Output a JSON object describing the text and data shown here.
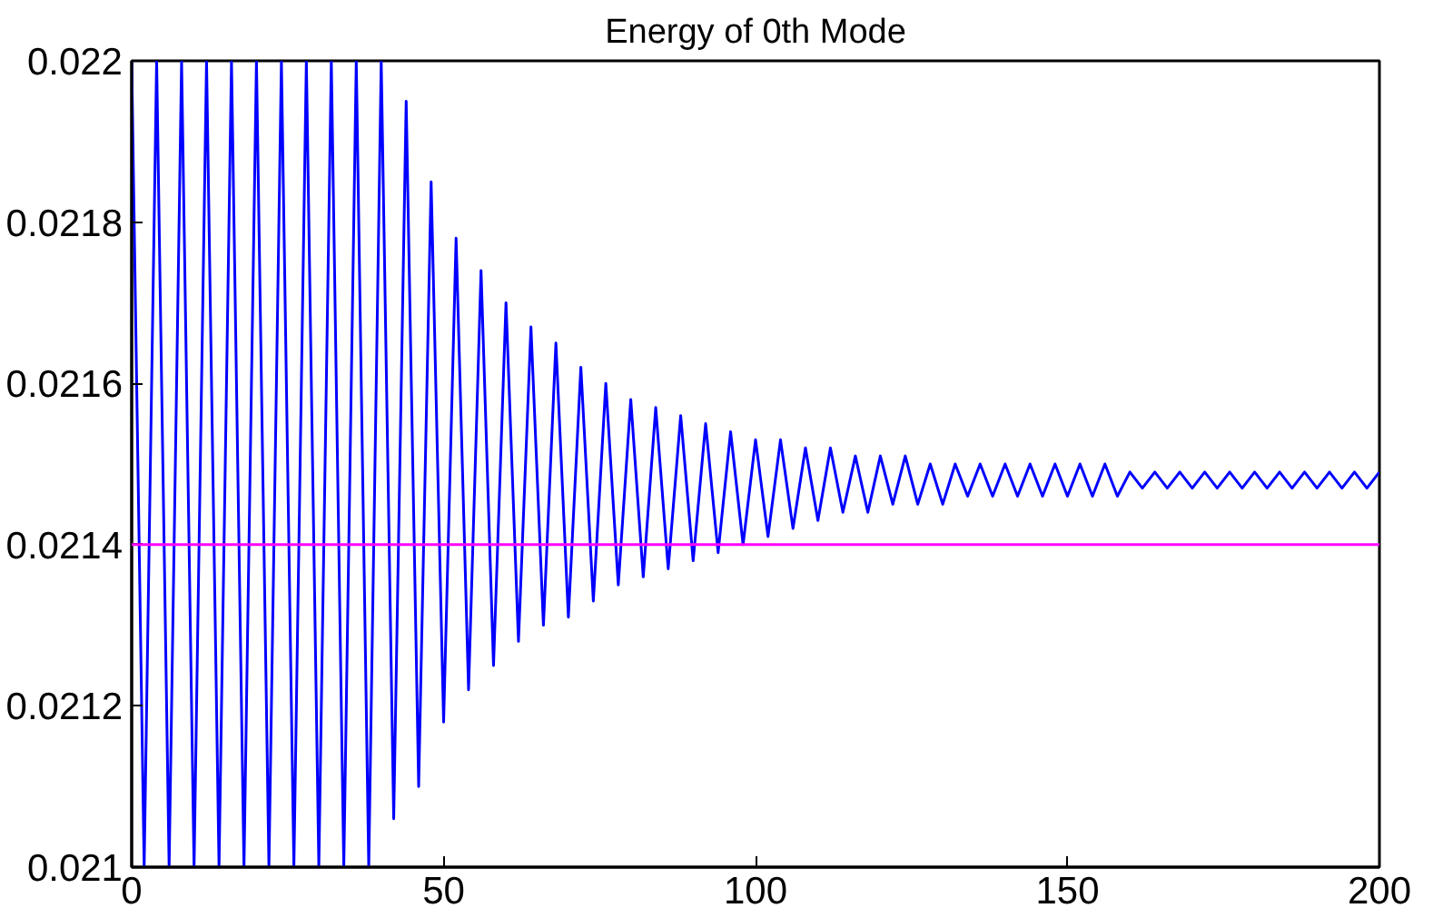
{
  "chart_data": {
    "type": "line",
    "title": "Energy of 0th Mode",
    "x": [
      0,
      2,
      4,
      6,
      8,
      10,
      12,
      14,
      16,
      18,
      20,
      22,
      24,
      26,
      28,
      30,
      32,
      34,
      36,
      38,
      40,
      42,
      44,
      46,
      48,
      50,
      52,
      54,
      56,
      58,
      60,
      62,
      64,
      66,
      68,
      70,
      72,
      74,
      76,
      78,
      80,
      82,
      84,
      86,
      88,
      90,
      92,
      94,
      96,
      98,
      100,
      102,
      104,
      106,
      108,
      110,
      112,
      114,
      116,
      118,
      120,
      122,
      124,
      126,
      128,
      130,
      132,
      134,
      136,
      138,
      140,
      142,
      144,
      146,
      148,
      150,
      152,
      154,
      156,
      158,
      160,
      162,
      164,
      166,
      168,
      170,
      172,
      174,
      176,
      178,
      180,
      182,
      184,
      186,
      188,
      190,
      192,
      194,
      196,
      198,
      200
    ],
    "series": [
      {
        "color": "#0000ff",
        "values": [
          0.022,
          0.021,
          0.022,
          0.021,
          0.022,
          0.021,
          0.022,
          0.021,
          0.022,
          0.021,
          0.022,
          0.021,
          0.022,
          0.021,
          0.022,
          0.021,
          0.022,
          0.021,
          0.022,
          0.021,
          0.022,
          0.02106,
          0.02195,
          0.0211,
          0.02185,
          0.02118,
          0.02178,
          0.02122,
          0.02174,
          0.02125,
          0.0217,
          0.02128,
          0.02167,
          0.0213,
          0.02165,
          0.02131,
          0.02162,
          0.02133,
          0.0216,
          0.02135,
          0.02158,
          0.02136,
          0.02157,
          0.02137,
          0.02156,
          0.02138,
          0.02155,
          0.02139,
          0.02154,
          0.0214,
          0.02153,
          0.02141,
          0.02153,
          0.02142,
          0.02152,
          0.02143,
          0.02152,
          0.02144,
          0.02151,
          0.02144,
          0.02151,
          0.02145,
          0.02151,
          0.02145,
          0.0215,
          0.02145,
          0.0215,
          0.02146,
          0.0215,
          0.02146,
          0.0215,
          0.02146,
          0.0215,
          0.02146,
          0.0215,
          0.02146,
          0.0215,
          0.02146,
          0.0215,
          0.02146,
          0.02149,
          0.02147,
          0.02149,
          0.02147,
          0.02149,
          0.02147,
          0.02149,
          0.02147,
          0.02149,
          0.02147,
          0.02149,
          0.02147,
          0.02149,
          0.02147,
          0.02149,
          0.02147,
          0.02149,
          0.02147,
          0.02149,
          0.02147,
          0.02149
        ]
      }
    ],
    "ref_lines": [
      {
        "axis": "y",
        "value": 0.0214,
        "color": "#ff00ff"
      }
    ],
    "xlim": [
      0,
      200
    ],
    "ylim": [
      0.021,
      0.022
    ],
    "xticks": [
      0,
      50,
      100,
      150,
      200
    ],
    "yticks": [
      0.021,
      0.0212,
      0.0214,
      0.0216,
      0.0218,
      0.022
    ],
    "grid": false
  }
}
